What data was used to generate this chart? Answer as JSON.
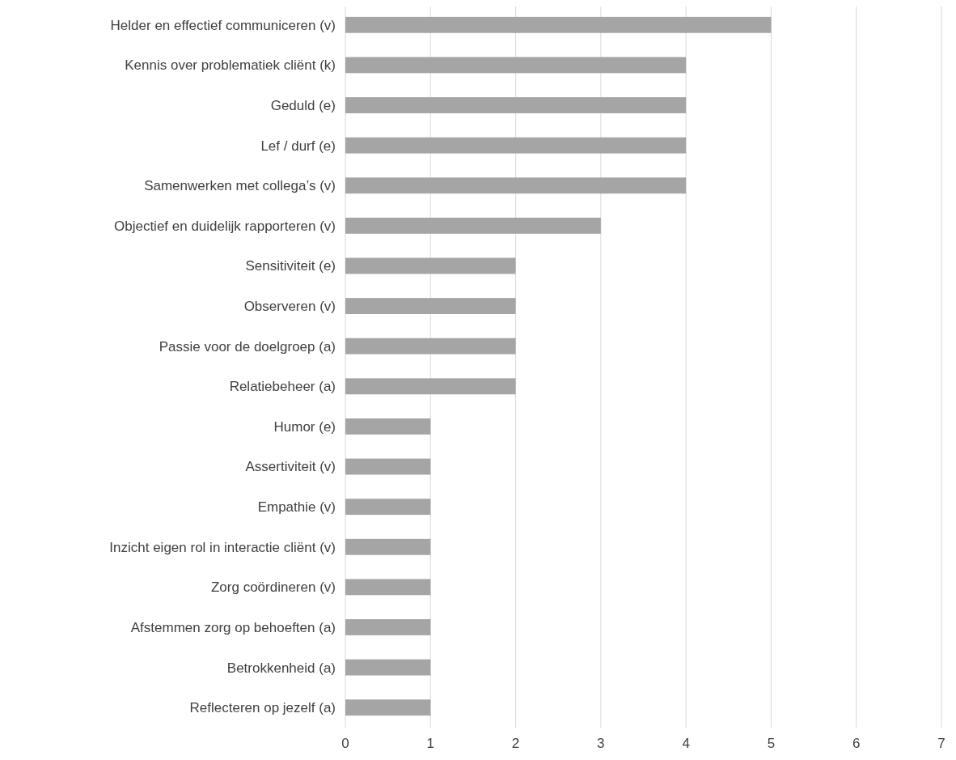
{
  "chart_data": {
    "type": "bar",
    "orientation": "horizontal",
    "categories": [
      "Helder en effectief communiceren (v)",
      "Kennis over problematiek cliënt (k)",
      "Geduld (e)",
      "Lef / durf (e)",
      "Samenwerken met collega’s (v)",
      "Objectief en duidelijk rapporteren (v)",
      "Sensitiviteit (e)",
      "Observeren (v)",
      "Passie voor de doelgroep (a)",
      "Relatiebeheer (a)",
      "Humor (e)",
      "Assertiviteit (v)",
      "Empathie (v)",
      "Inzicht eigen rol in interactie cliënt (v)",
      "Zorg coördineren (v)",
      "Afstemmen zorg op behoeften (a)",
      "Betrokkenheid (a)",
      "Reflecteren op jezelf (a)"
    ],
    "values": [
      5,
      4,
      4,
      4,
      4,
      3,
      2,
      2,
      2,
      2,
      1,
      1,
      1,
      1,
      1,
      1,
      1,
      1
    ],
    "color": "#a5a5a5",
    "xlim": [
      0,
      7
    ],
    "xticks": [
      0,
      1,
      2,
      3,
      4,
      5,
      6,
      7
    ],
    "grid": "x"
  }
}
